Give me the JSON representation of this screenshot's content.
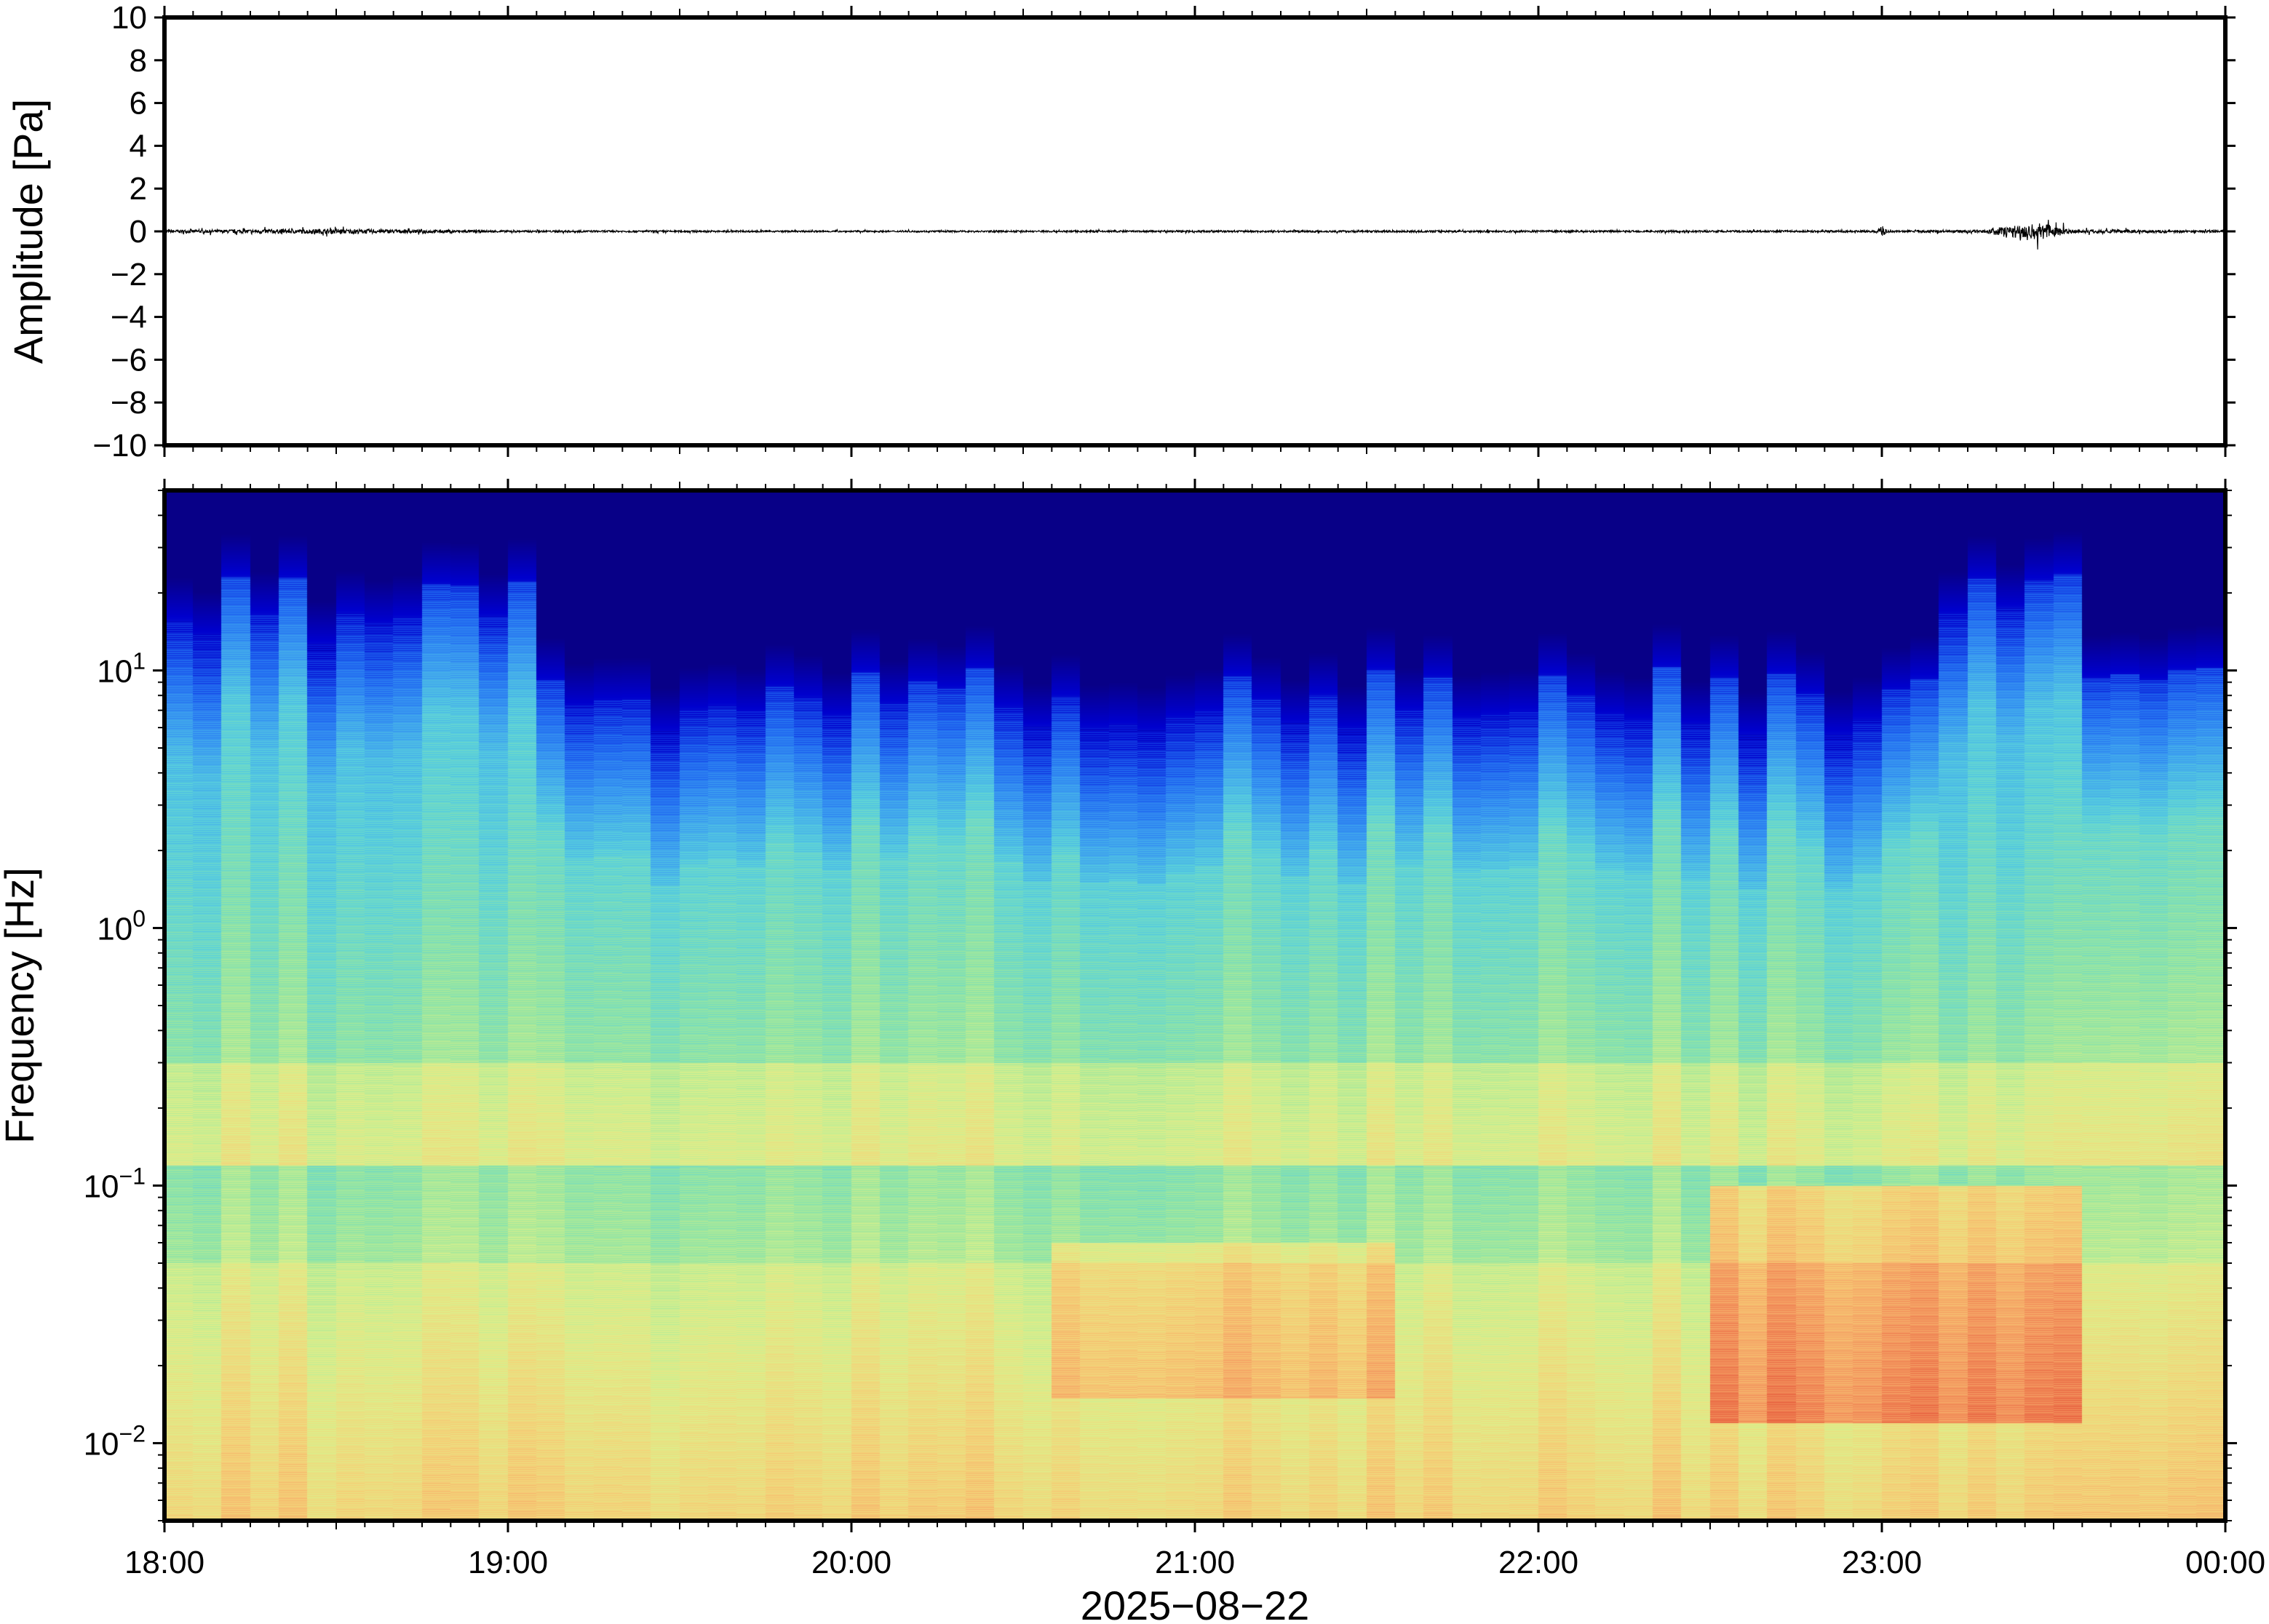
{
  "chart_data": [
    {
      "type": "line",
      "ylabel": "Amplitude [Pa]",
      "ylim": [
        -10,
        10
      ],
      "yticks": [
        10,
        8,
        6,
        4,
        2,
        0,
        -2,
        -4,
        -6,
        -8,
        -10
      ],
      "ytick_labels": [
        "10",
        "8",
        "6",
        "4",
        "2",
        "0",
        "−2",
        "−4",
        "−6",
        "−8",
        "−10"
      ],
      "x_range": [
        "2025-08-22 18:00",
        "2025-08-23 00:00"
      ],
      "series": [
        {
          "color": "#000000",
          "envelope_note": "trace stays near 0 Pa; largest bursts near 23:00 and 23:20-23:30",
          "x_hours": [
            18.0,
            18.5,
            19.0,
            20.0,
            21.0,
            22.0,
            22.98,
            23.0,
            23.02,
            23.3,
            23.35,
            23.45,
            23.5,
            23.55,
            24.0
          ],
          "peak_amplitude": [
            0.15,
            0.25,
            0.1,
            0.08,
            0.1,
            0.1,
            0.1,
            0.6,
            0.1,
            0.15,
            0.5,
            0.9,
            0.7,
            0.2,
            0.1
          ]
        }
      ]
    },
    {
      "type": "heatmap",
      "ylabel": "Frequency [Hz]",
      "yscale": "log",
      "ylim": [
        0.005,
        50
      ],
      "yticks": [
        10,
        1,
        0.1,
        0.01
      ],
      "ytick_labels": [
        {
          "base": "10",
          "exp": "1"
        },
        {
          "base": "10",
          "exp": "0"
        },
        {
          "base": "10",
          "exp": "−1"
        },
        {
          "base": "10",
          "exp": "−2"
        }
      ],
      "xlabel": "2025−08−22",
      "xticks": [
        "18:00",
        "19:00",
        "20:00",
        "21:00",
        "22:00",
        "23:00",
        "00:00"
      ],
      "x_range_hours": [
        18,
        24
      ],
      "colormap": [
        "#0a0078",
        "#0000cd",
        "#1e64f0",
        "#3ca0f0",
        "#5ad2dc",
        "#96e6a0",
        "#dcf08c",
        "#f5d278",
        "#f5a064",
        "#e65a3c"
      ],
      "features": [
        {
          "desc": "high-frequency energy band (dark blue cutoff)",
          "hours": [
            18.0,
            19.1
          ],
          "upper_hz": 18
        },
        {
          "desc": "high-frequency energy band (dark blue cutoff)",
          "hours": [
            19.1,
            23.2
          ],
          "upper_hz": 8
        },
        {
          "desc": "broadband burst",
          "hours": [
            23.2,
            23.55
          ],
          "upper_hz": 20
        },
        {
          "desc": "microseism band",
          "hz": [
            0.12,
            0.3
          ],
          "level": "high"
        },
        {
          "desc": "low-frequency high energy patches",
          "hours": [
            20.6,
            21.6
          ],
          "hz": [
            0.015,
            0.06
          ],
          "level": "high"
        },
        {
          "desc": "low-frequency high energy patches",
          "hours": [
            22.5,
            23.6
          ],
          "hz": [
            0.012,
            0.1
          ],
          "level": "very high"
        }
      ]
    }
  ]
}
